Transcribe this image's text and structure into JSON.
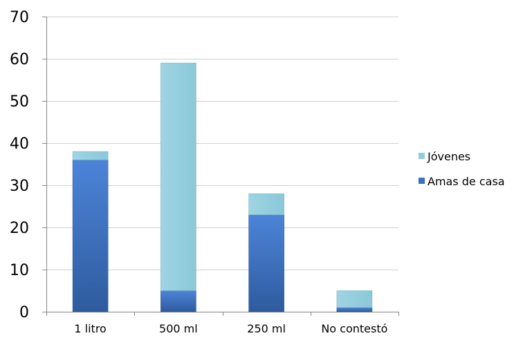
{
  "chart_data": {
    "type": "bar",
    "stacked": true,
    "categories": [
      "1 litro",
      "500 ml",
      "250 ml",
      "No contestó"
    ],
    "series": [
      {
        "name": "Amas de casa",
        "values": [
          36,
          5,
          23,
          1
        ],
        "color": "#3d6fc0"
      },
      {
        "name": "Jóvenes",
        "values": [
          2,
          54,
          5,
          4
        ],
        "color": "#92cddc"
      }
    ],
    "title": "",
    "xlabel": "",
    "ylabel": "",
    "ylim": [
      0,
      70
    ],
    "yticks": [
      0,
      10,
      20,
      30,
      40,
      50,
      60,
      70
    ],
    "grid": true,
    "legend_position": "right",
    "legend_order": [
      "Jóvenes",
      "Amas de casa"
    ]
  }
}
